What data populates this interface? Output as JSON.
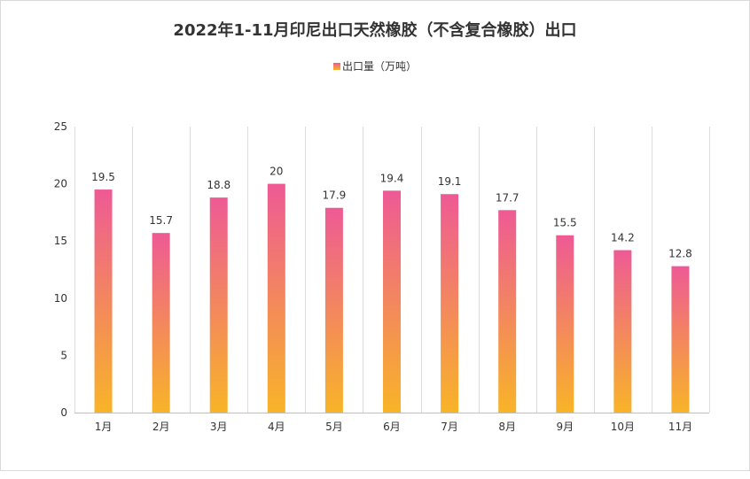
{
  "chart_data": {
    "type": "bar",
    "title": "2022年1-11月印尼出口天然橡胶（不含复合橡胶）出口",
    "categories": [
      "1月",
      "2月",
      "3月",
      "4月",
      "5月",
      "6月",
      "7月",
      "8月",
      "9月",
      "10月",
      "11月"
    ],
    "series": [
      {
        "name": "出口量（万吨）",
        "values": [
          19.5,
          15.7,
          18.8,
          20,
          17.9,
          19.4,
          19.1,
          17.7,
          15.5,
          14.2,
          12.8
        ]
      }
    ],
    "ylim": [
      0,
      25
    ],
    "yticks": [
      0,
      5,
      10,
      15,
      20,
      25
    ],
    "grid": "vertical",
    "legend": "top-center",
    "colors": {
      "bar_top": "#ee5a95",
      "bar_bottom": "#f8b428",
      "grid": "#dcdcdc",
      "axis": "#bfbfbf"
    }
  }
}
